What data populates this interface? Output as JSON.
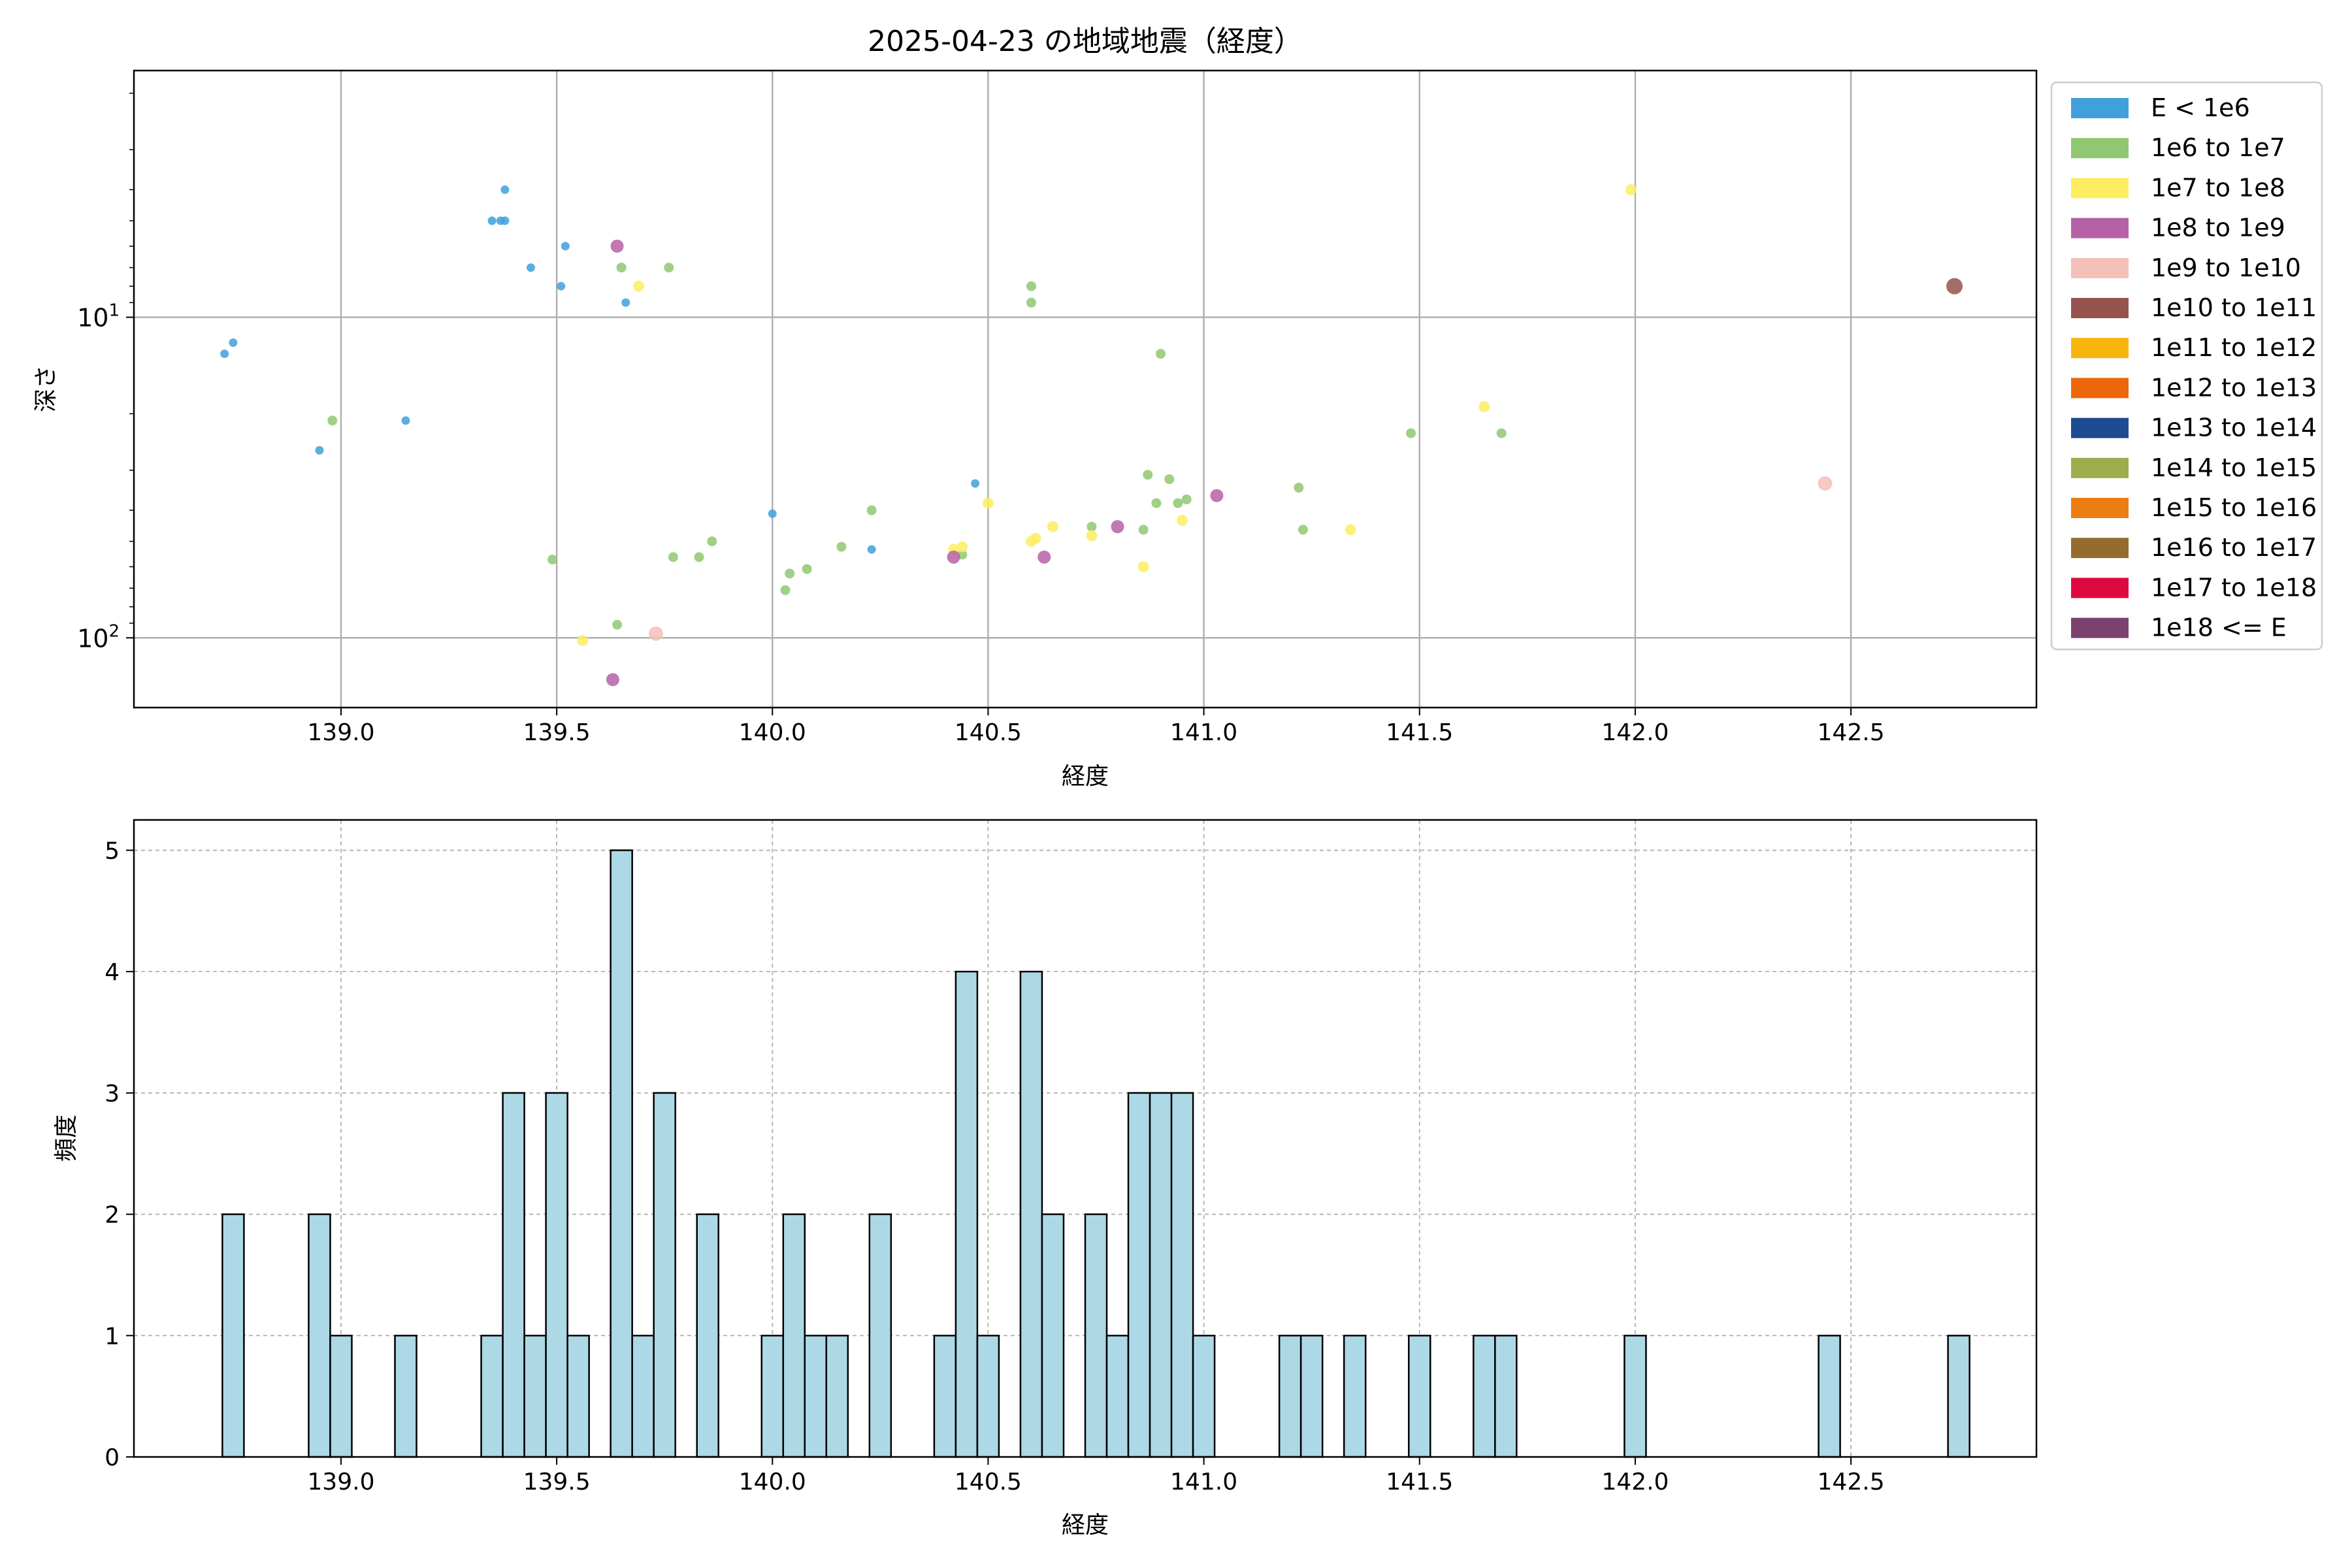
{
  "figure": {
    "scatter_title": "2025-04-23 の地域地震（経度）",
    "scatter_xlabel": "経度",
    "scatter_ylabel": "深さ",
    "hist_xlabel": "経度",
    "hist_ylabel": "頻度"
  },
  "chart_data": [
    {
      "type": "scatter",
      "title": "2025-04-23 の地域地震（経度）",
      "xlabel": "経度",
      "ylabel": "深さ",
      "xlim": [
        138.52,
        142.93
      ],
      "ylim": [
        165,
        1.7
      ],
      "y_scale": "log-inverted",
      "grid": true,
      "x_ticks": [
        139.0,
        139.5,
        140.0,
        140.5,
        141.0,
        141.5,
        142.0,
        142.5
      ],
      "x_tick_labels": [
        "139.0",
        "139.5",
        "140.0",
        "140.5",
        "141.0",
        "141.5",
        "142.0",
        "142.5"
      ],
      "y_ticks": [
        10,
        100
      ],
      "y_tick_bases": [
        "10",
        "10"
      ],
      "y_tick_exps": [
        "1",
        "2"
      ],
      "legend_position": "outside-right",
      "legend": [
        {
          "label": "E < 1e6",
          "color": "#3fa0dc"
        },
        {
          "label": "1e6 to 1e7",
          "color": "#8fc870"
        },
        {
          "label": "1e7 to 1e8",
          "color": "#fded61"
        },
        {
          "label": "1e8 to 1e9",
          "color": "#b561a6"
        },
        {
          "label": "1e9 to 1e10",
          "color": "#f4c0ba"
        },
        {
          "label": "1e10 to 1e11",
          "color": "#96534d"
        },
        {
          "label": "1e11 to 1e12",
          "color": "#f8b50e"
        },
        {
          "label": "1e12 to 1e13",
          "color": "#ec660b"
        },
        {
          "label": "1e13 to 1e14",
          "color": "#1d4b91"
        },
        {
          "label": "1e14 to 1e15",
          "color": "#9cad4e"
        },
        {
          "label": "1e15 to 1e16",
          "color": "#ec7d10"
        },
        {
          "label": "1e16 to 1e17",
          "color": "#946c2e"
        },
        {
          "label": "1e17 to 1e18",
          "color": "#dd0940"
        },
        {
          "label": "1e18 <= E",
          "color": "#7a426e"
        }
      ],
      "series": [
        {
          "name": "E < 1e6",
          "points": [
            [
              138.73,
              13
            ],
            [
              138.75,
              12
            ],
            [
              138.95,
              26
            ],
            [
              139.15,
              21
            ],
            [
              139.35,
              5
            ],
            [
              139.37,
              5
            ],
            [
              139.38,
              5
            ],
            [
              139.38,
              4
            ],
            [
              139.44,
              7
            ],
            [
              139.51,
              8
            ],
            [
              139.52,
              6
            ],
            [
              139.66,
              9
            ],
            [
              140.0,
              41
            ],
            [
              140.23,
              53
            ],
            [
              140.47,
              33
            ]
          ]
        },
        {
          "name": "1e6 to 1e7",
          "points": [
            [
              138.98,
              21
            ],
            [
              139.49,
              57
            ],
            [
              139.64,
              91
            ],
            [
              139.65,
              7
            ],
            [
              139.76,
              7
            ],
            [
              139.77,
              56
            ],
            [
              139.83,
              56
            ],
            [
              139.86,
              50
            ],
            [
              140.03,
              71
            ],
            [
              140.04,
              63
            ],
            [
              140.08,
              61
            ],
            [
              140.16,
              52
            ],
            [
              140.23,
              40
            ],
            [
              140.44,
              55
            ],
            [
              140.6,
              8
            ],
            [
              140.6,
              9
            ],
            [
              140.74,
              45
            ],
            [
              140.86,
              46
            ],
            [
              140.87,
              31
            ],
            [
              140.89,
              38
            ],
            [
              140.9,
              13
            ],
            [
              140.92,
              32
            ],
            [
              140.94,
              38
            ],
            [
              140.96,
              37
            ],
            [
              141.22,
              34
            ],
            [
              141.23,
              46
            ],
            [
              141.48,
              23
            ],
            [
              141.69,
              23
            ]
          ]
        },
        {
          "name": "1e7 to 1e8",
          "points": [
            [
              139.56,
              102
            ],
            [
              139.69,
              8
            ],
            [
              140.42,
              53
            ],
            [
              140.44,
              52
            ],
            [
              140.5,
              38
            ],
            [
              140.6,
              50
            ],
            [
              140.61,
              49
            ],
            [
              140.65,
              45
            ],
            [
              140.74,
              48
            ],
            [
              140.86,
              60
            ],
            [
              140.95,
              43
            ],
            [
              141.34,
              46
            ],
            [
              141.65,
              19
            ],
            [
              141.99,
              4
            ]
          ]
        },
        {
          "name": "1e8 to 1e9",
          "points": [
            [
              139.63,
              135
            ],
            [
              139.64,
              6
            ],
            [
              140.42,
              56
            ],
            [
              140.63,
              56
            ],
            [
              140.8,
              45
            ],
            [
              141.03,
              36
            ]
          ]
        },
        {
          "name": "1e9 to 1e10",
          "points": [
            [
              139.73,
              97
            ],
            [
              142.44,
              33
            ]
          ]
        },
        {
          "name": "1e10 to 1e11",
          "points": [
            [
              142.74,
              8
            ]
          ]
        }
      ]
    },
    {
      "type": "bar",
      "title": "",
      "xlabel": "経度",
      "ylabel": "頻度",
      "xlim": [
        138.52,
        142.93
      ],
      "ylim": [
        0,
        5.25
      ],
      "bin_width": 0.05,
      "grid": "dashed",
      "x_ticks": [
        139.0,
        139.5,
        140.0,
        140.5,
        141.0,
        141.5,
        142.0,
        142.5
      ],
      "x_tick_labels": [
        "139.0",
        "139.5",
        "140.0",
        "140.5",
        "141.0",
        "141.5",
        "142.0",
        "142.5"
      ],
      "y_ticks": [
        0,
        1,
        2,
        3,
        4,
        5
      ],
      "y_tick_labels": [
        "0",
        "1",
        "2",
        "3",
        "4",
        "5"
      ],
      "bar_color": "#add8e6",
      "bins": [
        {
          "x": 138.75,
          "count": 2
        },
        {
          "x": 138.95,
          "count": 2
        },
        {
          "x": 139.0,
          "count": 1
        },
        {
          "x": 139.15,
          "count": 1
        },
        {
          "x": 139.35,
          "count": 1
        },
        {
          "x": 139.4,
          "count": 3
        },
        {
          "x": 139.45,
          "count": 1
        },
        {
          "x": 139.5,
          "count": 3
        },
        {
          "x": 139.55,
          "count": 1
        },
        {
          "x": 139.65,
          "count": 5
        },
        {
          "x": 139.7,
          "count": 1
        },
        {
          "x": 139.75,
          "count": 3
        },
        {
          "x": 139.85,
          "count": 2
        },
        {
          "x": 140.0,
          "count": 1
        },
        {
          "x": 140.05,
          "count": 2
        },
        {
          "x": 140.1,
          "count": 1
        },
        {
          "x": 140.15,
          "count": 1
        },
        {
          "x": 140.25,
          "count": 2
        },
        {
          "x": 140.4,
          "count": 1
        },
        {
          "x": 140.45,
          "count": 4
        },
        {
          "x": 140.5,
          "count": 1
        },
        {
          "x": 140.6,
          "count": 4
        },
        {
          "x": 140.65,
          "count": 2
        },
        {
          "x": 140.75,
          "count": 2
        },
        {
          "x": 140.8,
          "count": 1
        },
        {
          "x": 140.85,
          "count": 3
        },
        {
          "x": 140.9,
          "count": 3
        },
        {
          "x": 140.95,
          "count": 3
        },
        {
          "x": 141.0,
          "count": 1
        },
        {
          "x": 141.2,
          "count": 1
        },
        {
          "x": 141.25,
          "count": 1
        },
        {
          "x": 141.35,
          "count": 1
        },
        {
          "x": 141.5,
          "count": 1
        },
        {
          "x": 141.65,
          "count": 1
        },
        {
          "x": 141.7,
          "count": 1
        },
        {
          "x": 142.0,
          "count": 1
        },
        {
          "x": 142.45,
          "count": 1
        },
        {
          "x": 142.75,
          "count": 1
        }
      ]
    }
  ]
}
